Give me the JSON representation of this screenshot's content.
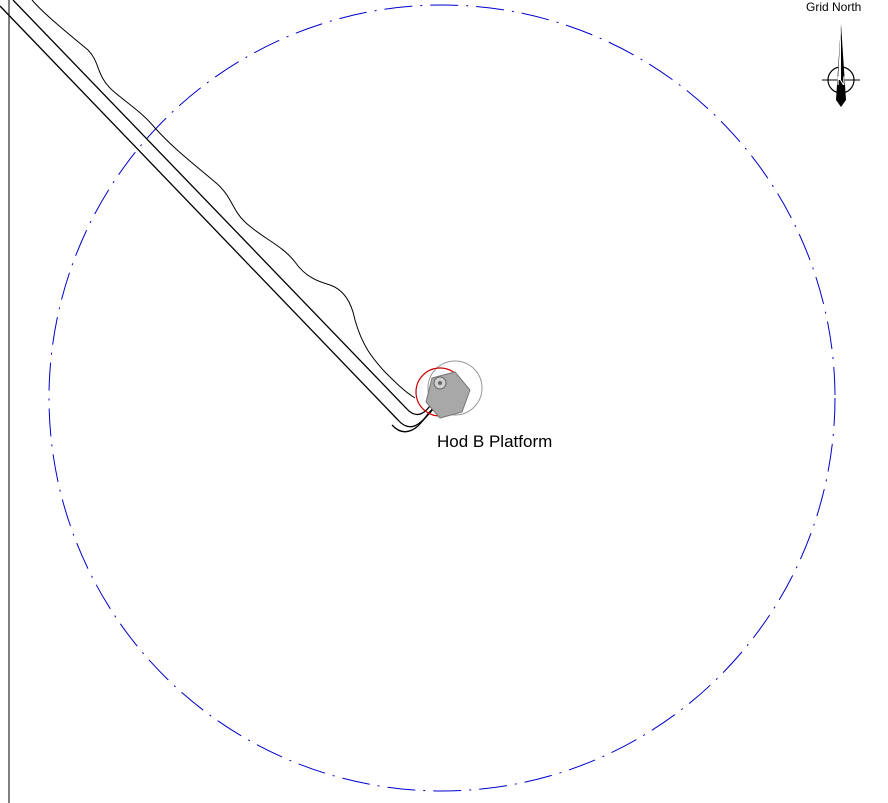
{
  "north_arrow": {
    "label": "Grid North",
    "letter": "N",
    "icon": "north-arrow-icon"
  },
  "platform": {
    "label": "Hod B Platform"
  },
  "colors": {
    "zone_circle": "#0000cc",
    "platform_circle": "#cc0000",
    "pipeline": "#000000",
    "platform_fill": "#a0a0a0"
  }
}
